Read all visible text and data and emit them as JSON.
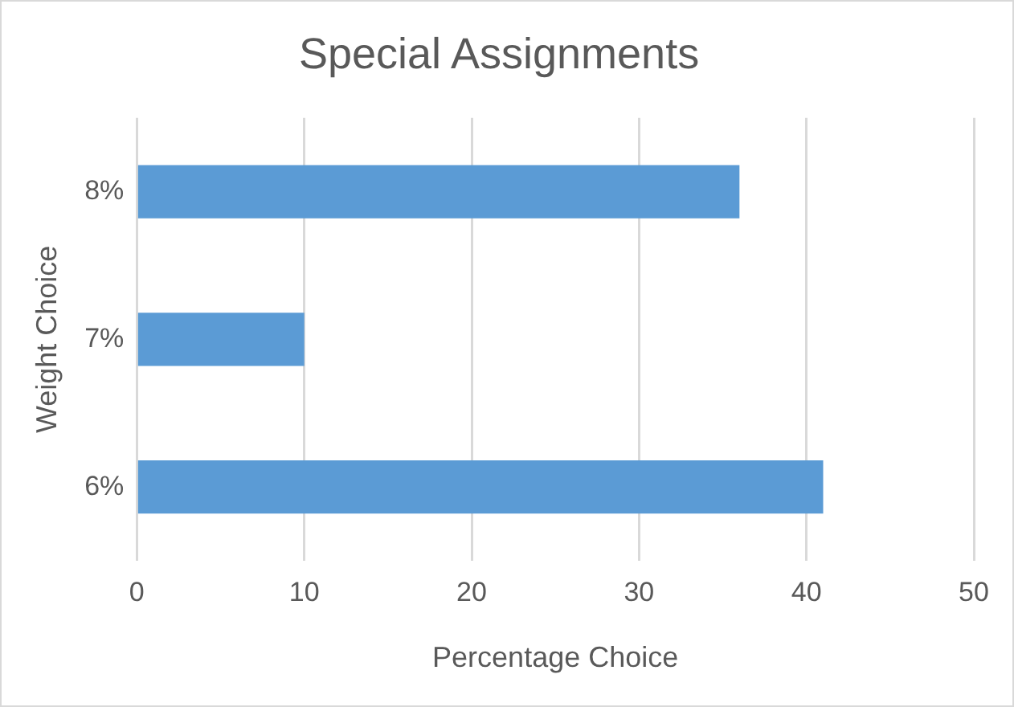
{
  "chart_data": {
    "type": "bar",
    "orientation": "horizontal",
    "title": "Special Assignments",
    "xlabel": "Percentage Choice",
    "ylabel": "Weight Choice",
    "categories": [
      "8%",
      "7%",
      "6%"
    ],
    "values": [
      36,
      10,
      41
    ],
    "color": "#5b9bd5",
    "xlim": [
      0,
      50
    ],
    "xticks": [
      0,
      10,
      20,
      30,
      40,
      50
    ],
    "grid": "x",
    "legend": false
  }
}
